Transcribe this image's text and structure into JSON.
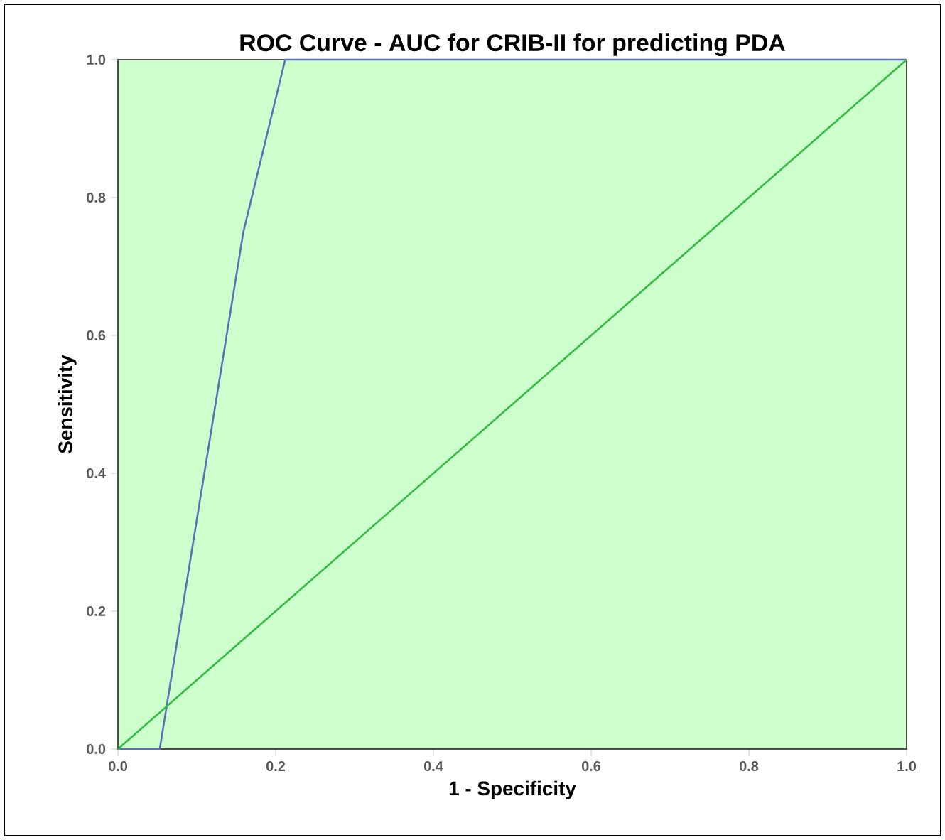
{
  "chart_data": {
    "type": "line",
    "title": "ROC Curve - AUC for CRIB-II for predicting PDA",
    "xlabel": "1 - Specificity",
    "ylabel": "Sensitivity",
    "xlim": [
      0,
      1
    ],
    "ylim": [
      0,
      1
    ],
    "xticks": [
      {
        "value": 0,
        "label": "0.0"
      },
      {
        "value": 0.2,
        "label": "0.2"
      },
      {
        "value": 0.4,
        "label": "0.4"
      },
      {
        "value": 0.6,
        "label": "0.6"
      },
      {
        "value": 0.8,
        "label": "0.8"
      },
      {
        "value": 1,
        "label": "1.0"
      }
    ],
    "yticks": [
      {
        "value": 0,
        "label": "0.0"
      },
      {
        "value": 0.2,
        "label": "0.2"
      },
      {
        "value": 0.4,
        "label": "0.4"
      },
      {
        "value": 0.6,
        "label": "0.6"
      },
      {
        "value": 0.8,
        "label": "0.8"
      },
      {
        "value": 1,
        "label": "1.0"
      }
    ],
    "marker": "none",
    "line_style": "solid",
    "series": [
      {
        "color": "#5b6fb5",
        "x": [
          0,
          0.053,
          0.159,
          0.212,
          1
        ],
        "values": [
          0,
          0,
          0.75,
          1,
          1
        ]
      },
      {
        "color": "#33bb44",
        "x": [
          0,
          1
        ],
        "values": [
          0,
          1
        ]
      }
    ]
  }
}
